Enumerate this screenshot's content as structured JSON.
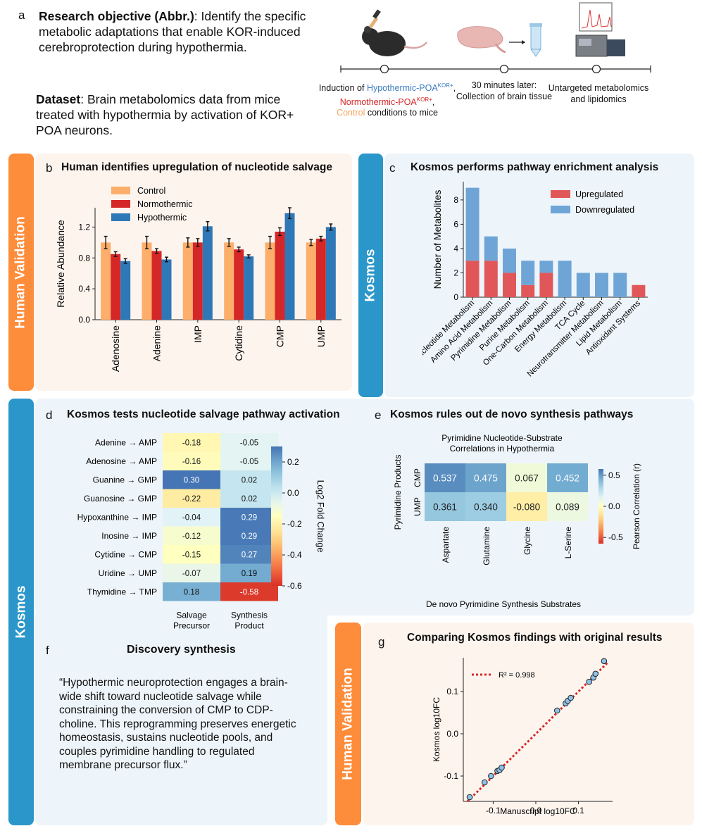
{
  "panel_a": {
    "letter": "a",
    "objective_label": "Research objective (Abbr.)",
    "objective_text": ": Identify the specific metabolic adaptations that enable KOR-induced cerebroprotection during hypothermia.",
    "dataset_label": "Dataset",
    "dataset_text": ": Brain metabolomics data from mice treated with hypothermia by activation of KOR+ POA neurons.",
    "step1_prefix": "Induction of ",
    "step1_hypo": "Hypothermic-POA",
    "step1_hypo_sup": "KOR+",
    "step1_comma": ",",
    "step1_normo": "Normothermic-POA",
    "step1_normo_sup": "KOR+",
    "step1_comma2": ",",
    "step1_control": "Control",
    "step1_suffix": " conditions to mice",
    "step2_line1": "30 minutes later:",
    "step2_line2": "Collection of brain tissue",
    "step3_line1": "Untargeted metabolomics",
    "step3_line2": "and lipidomics",
    "colors": {
      "hypo": "#3b7dc0",
      "normo": "#d62728",
      "control": "#f5a55b"
    }
  },
  "tabs": {
    "human_validation": "Human Validation",
    "kosmos": "Kosmos",
    "colors": {
      "orange": "#fd8c3b",
      "blue": "#2b96c9",
      "orange_bg": "#fdf4ee",
      "blue_bg": "#eef5fa"
    }
  },
  "panel_b": {
    "letter": "b",
    "title": "Human identifies upregulation of nucleotide salvage",
    "chart_data": {
      "type": "bar",
      "ylabel": "Relative Abundance",
      "xlabel": "",
      "ylim": [
        0,
        1.45
      ],
      "yticks": [
        "0.0",
        "0.4",
        "0.8",
        "1.2"
      ],
      "categories": [
        "Adenosine",
        "Adenine",
        "IMP",
        "Cytidine",
        "CMP",
        "UMP"
      ],
      "legend_position": "top-left",
      "series": [
        {
          "name": "Control",
          "color": "#fdae6b",
          "values": [
            1.0,
            1.0,
            1.0,
            1.0,
            1.0,
            1.0
          ],
          "errors": [
            0.08,
            0.08,
            0.06,
            0.05,
            0.08,
            0.04
          ]
        },
        {
          "name": "Normothermic",
          "color": "#d62728",
          "values": [
            0.85,
            0.89,
            1.0,
            0.91,
            1.14,
            1.05
          ],
          "errors": [
            0.03,
            0.03,
            0.05,
            0.03,
            0.05,
            0.03
          ]
        },
        {
          "name": "Hypothermic",
          "color": "#2e78b7",
          "values": [
            0.76,
            0.78,
            1.21,
            0.82,
            1.38,
            1.2
          ],
          "errors": [
            0.03,
            0.03,
            0.06,
            0.02,
            0.07,
            0.04
          ]
        }
      ]
    }
  },
  "panel_c": {
    "letter": "c",
    "title": "Kosmos performs pathway enrichment analysis",
    "chart_data": {
      "type": "bar",
      "ylabel": "Number of Metabolites",
      "xlabel": "",
      "ylim": [
        0,
        9.5
      ],
      "yticks": [
        "0",
        "2",
        "4",
        "6",
        "8"
      ],
      "categories": [
        "Nucleotide Metabolism",
        "Amino Acid Metabolism",
        "Pyrimidine Metabolism",
        "Purine Metabolism",
        "One-Carbon Metabolism",
        "Energy Metabolism",
        "TCA Cycle",
        "Neurotransmitter Metabolism",
        "Lipid Metabolism",
        "Antioxidant Systems"
      ],
      "legend_position": "top-right",
      "series": [
        {
          "name": "Upregulated",
          "color": "#e15759",
          "values": [
            3,
            3,
            2,
            1,
            2,
            0,
            0,
            0,
            0,
            1
          ]
        },
        {
          "name": "Downregulated",
          "color": "#6fa5d6",
          "values": [
            6,
            2,
            2,
            2,
            1,
            3,
            2,
            2,
            2,
            0
          ]
        }
      ]
    }
  },
  "panel_d": {
    "letter": "d",
    "title": "Kosmos tests nucleotide salvage pathway activation",
    "chart_data": {
      "type": "heatmap",
      "rows": [
        "Adenine → AMP",
        "Adenosine → AMP",
        "Guanine → GMP",
        "Guanosine → GMP",
        "Hypoxanthine → IMP",
        "Inosine → IMP",
        "Cytidine → CMP",
        "Uridine → UMP",
        "Thymidine → TMP"
      ],
      "columns": [
        "Salvage Precursor",
        "Synthesis Product"
      ],
      "column_lines": [
        [
          "Salvage",
          "Precursor"
        ],
        [
          "Synthesis",
          "Product"
        ]
      ],
      "values": [
        [
          -0.18,
          -0.05
        ],
        [
          -0.16,
          -0.05
        ],
        [
          0.3,
          0.02
        ],
        [
          -0.22,
          0.02
        ],
        [
          -0.04,
          0.29
        ],
        [
          -0.12,
          0.29
        ],
        [
          -0.15,
          0.27
        ],
        [
          -0.07,
          0.19
        ],
        [
          0.18,
          -0.58
        ]
      ],
      "labels": [
        [
          "-0.18",
          "-0.05"
        ],
        [
          "-0.16",
          "-0.05"
        ],
        [
          "0.30",
          "0.02"
        ],
        [
          "-0.22",
          "0.02"
        ],
        [
          "-0.04",
          "0.29"
        ],
        [
          "-0.12",
          "0.29"
        ],
        [
          "-0.15",
          "0.27"
        ],
        [
          "-0.07",
          "0.19"
        ],
        [
          "0.18",
          "-0.58"
        ]
      ],
      "colorbar_label": "Log2 Fold Change",
      "colorbar_range": [
        -0.6,
        0.3
      ],
      "colorbar_ticks": [
        "0.2",
        "0.0",
        "-0.2",
        "-0.4",
        "-0.6"
      ],
      "colorbar_tick_values": [
        0.2,
        0.0,
        -0.2,
        -0.4,
        -0.6
      ]
    }
  },
  "panel_e": {
    "letter": "e",
    "title": "Kosmos rules out de novo synthesis pathways",
    "chart_data": {
      "type": "heatmap",
      "title_line1": "Pyrimidine Nucleotide-Substrate",
      "title_line2": "Correlations in Hypothermia",
      "rows": [
        "CMP",
        "UMP"
      ],
      "columns": [
        "Aspartate",
        "Glutamine",
        "Glycine",
        "L-Serine"
      ],
      "values": [
        [
          0.537,
          0.475,
          0.067,
          0.452
        ],
        [
          0.361,
          0.34,
          -0.08,
          0.089
        ]
      ],
      "labels": [
        [
          "0.537",
          "0.475",
          "0.067",
          "0.452"
        ],
        [
          "0.361",
          "0.340",
          "-0.080",
          "0.089"
        ]
      ],
      "ylabel": "Pyrimidine Products",
      "xlabel": "De novo Pyrimidine Synthesis Substrates",
      "colorbar_label": "Pearson Correlation (r)",
      "colorbar_range": [
        -0.6,
        0.6
      ],
      "colorbar_ticks": [
        "0.5",
        "0.0",
        "-0.5"
      ],
      "colorbar_tick_values": [
        0.5,
        0.0,
        -0.5
      ]
    }
  },
  "panel_f": {
    "letter": "f",
    "title": "Discovery synthesis",
    "quote": "“Hypothermic neuroprotection engages a brain-wide shift toward nucleotide salvage while constraining the conversion of CMP to CDP-choline. This reprogramming preserves energetic homeostasis, sustains nucleotide pools, and couples pyrimidine handling to regulated membrane precursor flux.”"
  },
  "panel_g": {
    "letter": "g",
    "title": "Comparing Kosmos findings with original results",
    "chart_data": {
      "type": "scatter",
      "xlabel": "Manuscript log10FC",
      "ylabel": "Kosmos log10FC",
      "xlim": [
        -0.17,
        0.18
      ],
      "ylim": [
        -0.16,
        0.18
      ],
      "xticks": [
        "-0.1",
        "0.0",
        "0.1"
      ],
      "yticks": [
        "-0.1",
        "0.0",
        "0.1"
      ],
      "legend": "R² = 0.998",
      "fit": {
        "slope": 1.0,
        "intercept": 0.0
      },
      "x": [
        -0.155,
        -0.12,
        -0.105,
        -0.09,
        -0.085,
        -0.08,
        0.05,
        0.07,
        0.075,
        0.082,
        0.125,
        0.135,
        0.14,
        0.16
      ],
      "y": [
        -0.15,
        -0.115,
        -0.1,
        -0.088,
        -0.086,
        -0.08,
        0.055,
        0.072,
        0.078,
        0.085,
        0.123,
        0.133,
        0.142,
        0.172
      ]
    }
  }
}
